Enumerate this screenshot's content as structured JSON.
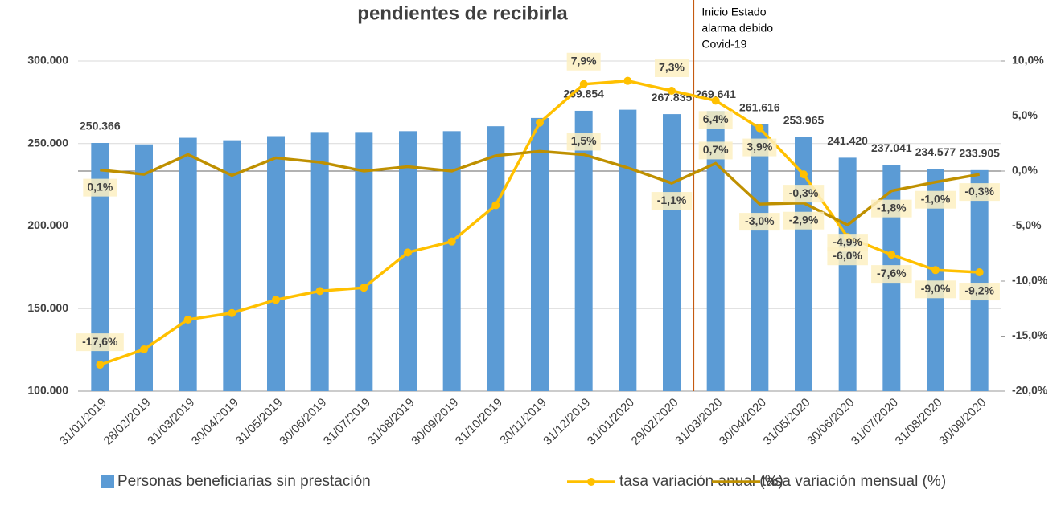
{
  "chart_data": {
    "type": "bar_line",
    "title": "pendientes de recibirla",
    "annotation": [
      "Inicio Estado",
      "alarma debido",
      "Covid-19"
    ],
    "categories": [
      "31/01/2019",
      "28/02/2019",
      "31/03/2019",
      "30/04/2019",
      "31/05/2019",
      "30/06/2019",
      "31/07/2019",
      "31/08/2019",
      "30/09/2019",
      "31/10/2019",
      "30/11/2019",
      "31/12/2019",
      "31/01/2020",
      "29/02/2020",
      "31/03/2020",
      "30/04/2020",
      "31/05/2020",
      "30/06/2020",
      "31/07/2020",
      "31/08/2020",
      "30/09/2020"
    ],
    "ylim": [
      100000,
      300000
    ],
    "yticks": [
      {
        "value": 100000,
        "label": "100.000"
      },
      {
        "value": 150000,
        "label": "150.000"
      },
      {
        "value": 200000,
        "label": "200.000"
      },
      {
        "value": 250000,
        "label": "250.000"
      },
      {
        "value": 300000,
        "label": "300.000"
      }
    ],
    "y2lim": [
      -20,
      10
    ],
    "y2ticks": [
      {
        "value": -20,
        "label": "-20,0%"
      },
      {
        "value": -15,
        "label": "-15,0%"
      },
      {
        "value": -10,
        "label": "-10,0%"
      },
      {
        "value": -5,
        "label": "-5,0%"
      },
      {
        "value": 0,
        "label": "0,0%"
      },
      {
        "value": 5,
        "label": "5,0%"
      },
      {
        "value": 10,
        "label": "10,0%"
      }
    ],
    "series": [
      {
        "name": "Personas beneficiarias sin prestación",
        "type": "bar",
        "color": "#5b9bd5",
        "values": [
          250366,
          249500,
          253500,
          252000,
          254500,
          257000,
          257000,
          257500,
          257500,
          260500,
          265500,
          269854,
          270500,
          267835,
          269641,
          261616,
          253965,
          241420,
          237041,
          234577,
          233905
        ],
        "value_labels": [
          "250.366",
          null,
          null,
          null,
          null,
          null,
          null,
          null,
          null,
          null,
          null,
          "269.854",
          null,
          "267.835",
          "269.641",
          "261.616",
          "253.965",
          "241.420",
          "237.041",
          "234.577",
          "233.905"
        ]
      },
      {
        "name": "tasa variación anual (%)",
        "type": "line",
        "axis": "y2",
        "color": "#ffc000",
        "values": [
          -17.6,
          -16.2,
          -13.5,
          -12.9,
          -11.7,
          -10.9,
          -10.6,
          -7.4,
          -6.4,
          -3.1,
          4.4,
          7.9,
          8.2,
          7.3,
          6.4,
          3.9,
          -0.3,
          -6.0,
          -7.6,
          -9.0,
          -9.2
        ],
        "value_labels": [
          "-17,6%",
          null,
          null,
          null,
          null,
          null,
          null,
          null,
          null,
          null,
          null,
          "7,9%",
          null,
          "7,3%",
          "6,4%",
          "3,9%",
          "-0,3%",
          "-6,0%",
          "-7,6%",
          "-9,0%",
          "-9,2%"
        ]
      },
      {
        "name": "tasa variación mensual (%)",
        "type": "line",
        "axis": "y2",
        "color": "#bf9000",
        "values": [
          0.1,
          -0.3,
          1.5,
          -0.4,
          1.2,
          0.8,
          0.0,
          0.4,
          0.0,
          1.4,
          1.8,
          1.5,
          0.3,
          -1.1,
          0.7,
          -3.0,
          -2.9,
          -4.9,
          -1.8,
          -1.0,
          -0.3
        ],
        "value_labels": [
          "0,1%",
          null,
          null,
          null,
          null,
          null,
          null,
          null,
          null,
          null,
          null,
          "1,5%",
          null,
          "-1,1%",
          "0,7%",
          "-3,0%",
          "-2,9%",
          "-4,9%",
          "-1,8%",
          "-1,0%",
          "-0,3%"
        ]
      }
    ]
  }
}
